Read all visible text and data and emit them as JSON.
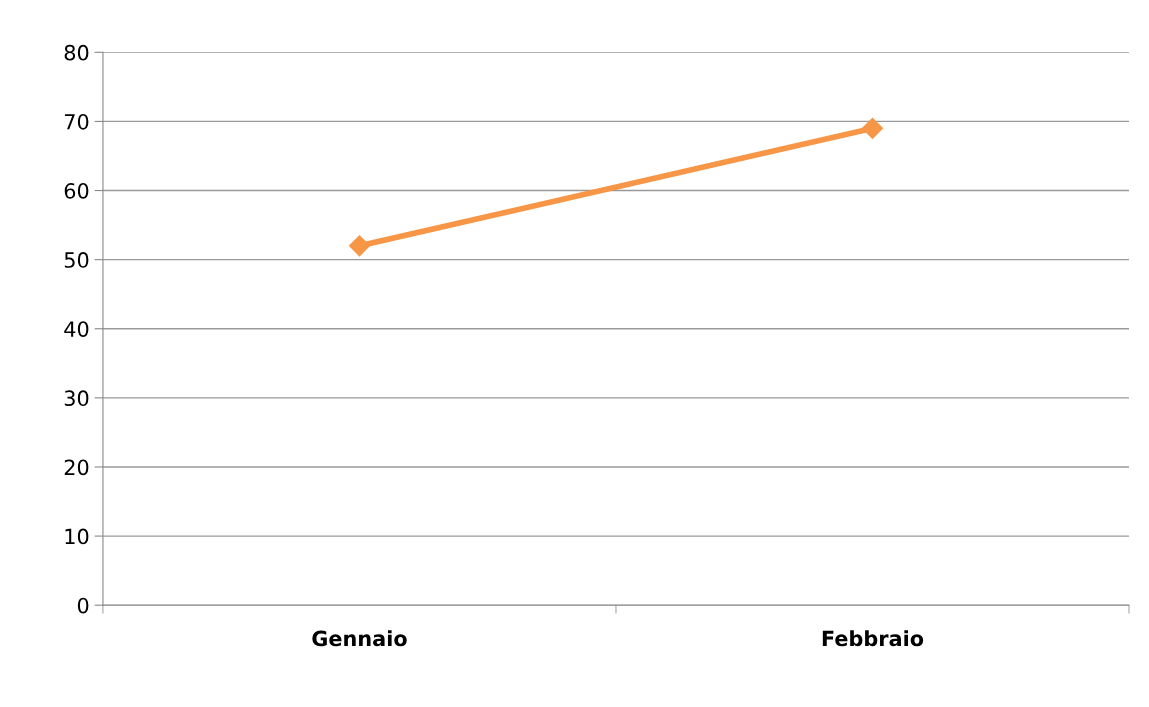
{
  "chart_data": {
    "type": "line",
    "categories": [
      "Gennaio",
      "Febbraio"
    ],
    "series": [
      {
        "color": "#f79646",
        "values": [
          52,
          69
        ]
      }
    ],
    "ylim": [
      0,
      80
    ],
    "yticks": [
      0,
      10,
      20,
      30,
      40,
      50,
      60,
      70,
      80
    ],
    "grid": "y",
    "marker": "diamond",
    "line_style": "solid",
    "legend": false
  }
}
